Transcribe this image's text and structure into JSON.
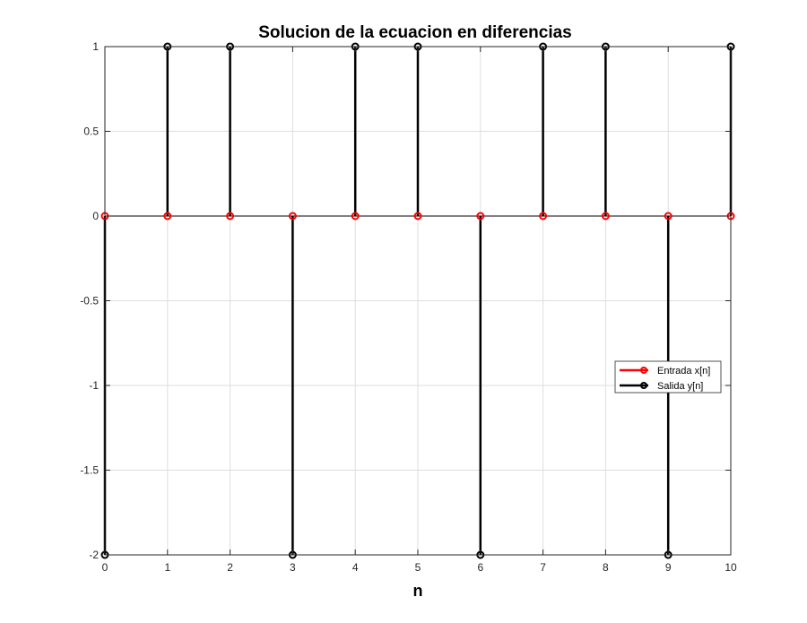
{
  "chart_data": {
    "type": "stem",
    "title": "Solucion de la ecuacion en diferencias",
    "xlabel": "n",
    "ylabel": "",
    "xlim": [
      0,
      10
    ],
    "ylim": [
      -2,
      1
    ],
    "xticks": [
      "0",
      "1",
      "2",
      "3",
      "4",
      "5",
      "6",
      "7",
      "8",
      "9",
      "10"
    ],
    "yticks": [
      "1",
      "0.5",
      "0",
      "-0.5",
      "-1",
      "-1.5",
      "-2"
    ],
    "grid": true,
    "legend_position": "right",
    "x": [
      0,
      1,
      2,
      3,
      4,
      5,
      6,
      7,
      8,
      9,
      10
    ],
    "series": [
      {
        "name": "Entrada x[n]",
        "color": "#ff0000",
        "values": [
          0,
          0,
          0,
          0,
          0,
          0,
          0,
          0,
          0,
          0,
          0
        ]
      },
      {
        "name": "Salida y[n]",
        "color": "#000000",
        "values": [
          -2,
          1,
          1,
          -2,
          1,
          1,
          -2,
          1,
          1,
          -2,
          1
        ]
      }
    ]
  }
}
